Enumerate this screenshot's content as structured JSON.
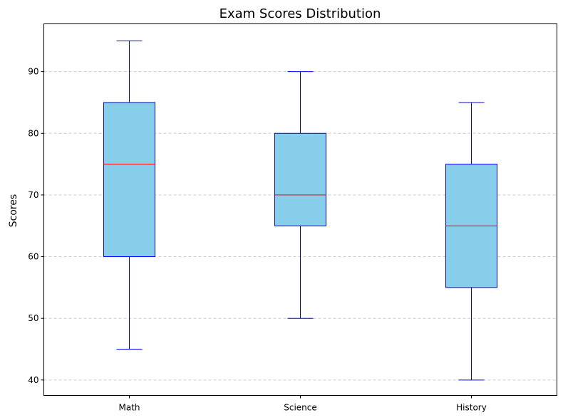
{
  "chart_data": {
    "type": "box",
    "title": "Exam Scores Distribution",
    "xlabel": "",
    "ylabel": "Scores",
    "ylim": [
      37.5,
      97.75
    ],
    "yticks": [
      40,
      50,
      60,
      70,
      80,
      90
    ],
    "grid": "y-dashed",
    "categories": [
      "Math",
      "Science",
      "History"
    ],
    "boxes": [
      {
        "category": "Math",
        "min": 45,
        "q1": 60,
        "median": 75,
        "q3": 85,
        "max": 95
      },
      {
        "category": "Science",
        "min": 50,
        "q1": 65,
        "median": 70,
        "q3": 80,
        "max": 90
      },
      {
        "category": "History",
        "min": 40,
        "q1": 55,
        "median": 65,
        "q3": 75,
        "max": 85
      }
    ],
    "colors": {
      "box_fill": "#87ceeb",
      "box_edge": "#0000ff",
      "whisker": "#0000ff",
      "median": "#ff0000",
      "grid": "#cccccc"
    }
  }
}
